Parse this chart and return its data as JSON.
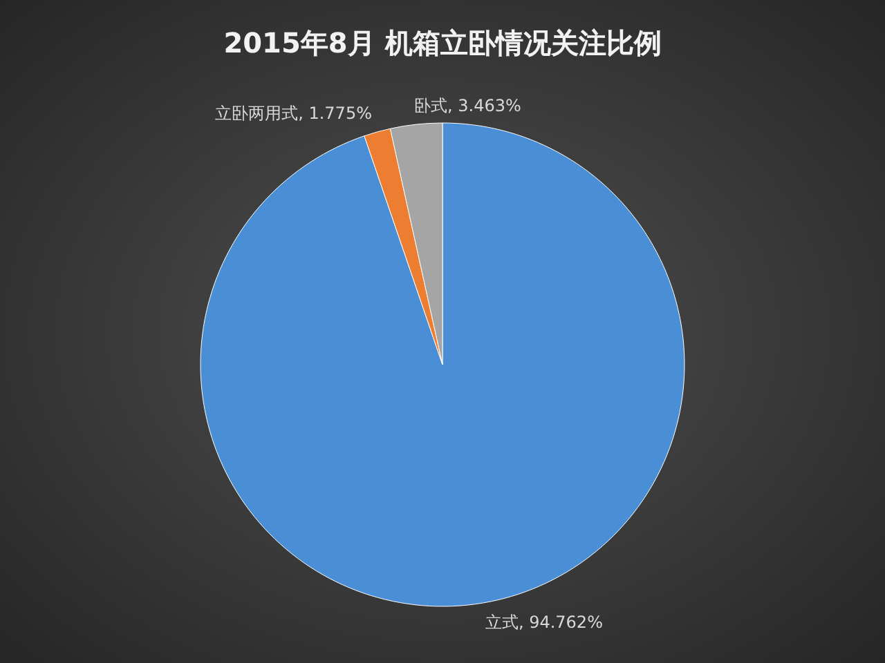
{
  "chart_data": {
    "type": "pie",
    "title": "2015年8月  机箱立卧情况关注比例",
    "categories": [
      "立式",
      "立卧两用式",
      "卧式"
    ],
    "values": [
      94.762,
      1.775,
      3.463
    ],
    "value_labels": [
      "94.762%",
      "1.775%",
      "3.463%"
    ],
    "colors": [
      "#4a8fd5",
      "#ed7d31",
      "#a5a5a5"
    ],
    "legend": false
  }
}
